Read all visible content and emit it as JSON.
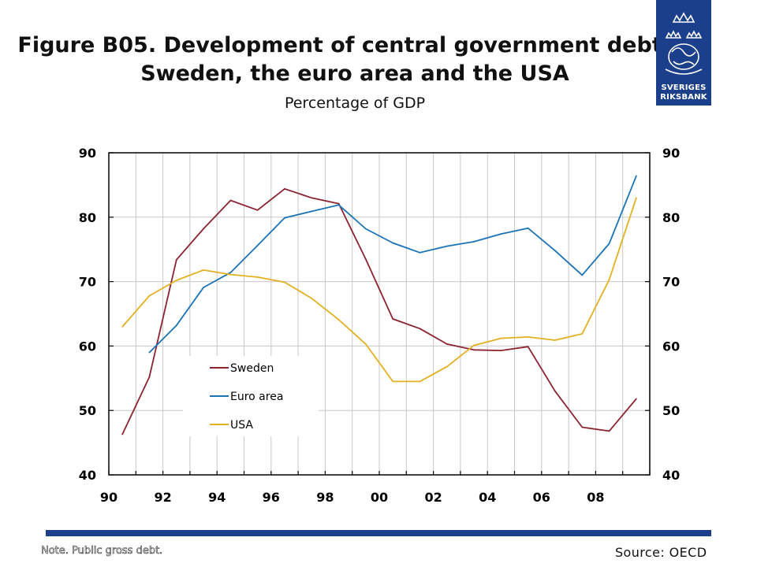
{
  "header": {
    "title_line1": "Figure B05. Development of central government debt in",
    "title_line2": "Sweden, the euro area and the USA",
    "subtitle": "Percentage of GDP"
  },
  "logo": {
    "line1": "SVERIGES",
    "line2": "RIKSBANK",
    "color": "#1b3f8b"
  },
  "chart_data": {
    "type": "line",
    "title": "Figure B05. Development of central government debt in Sweden, the euro area and the USA",
    "subtitle": "Percentage of GDP",
    "x_tick_labels": [
      "90",
      "92",
      "94",
      "96",
      "98",
      "00",
      "02",
      "04",
      "06",
      "08"
    ],
    "y_ticks": [
      40,
      50,
      60,
      70,
      80,
      90
    ],
    "xlim": [
      1990,
      2010
    ],
    "ylim": [
      40,
      90
    ],
    "grid": true,
    "legend_position": "lower-left inside",
    "series": [
      {
        "name": "Sweden",
        "color": "#8b2332",
        "x": [
          1990.5,
          1991.5,
          1992.5,
          1993.5,
          1994.5,
          1995.5,
          1996.5,
          1997.5,
          1998.5,
          1999.5,
          2000.5,
          2001.5,
          2002.5,
          2003.5,
          2004.5,
          2005.5,
          2006.5,
          2007.5,
          2008.5,
          2009.5
        ],
        "values": [
          46.3,
          55.2,
          73.4,
          78.2,
          82.6,
          81.1,
          84.4,
          83.0,
          82.1,
          73.5,
          64.2,
          62.7,
          60.3,
          59.4,
          59.3,
          59.9,
          53.0,
          47.4,
          46.8,
          51.8
        ]
      },
      {
        "name": "Euro area",
        "color": "#1a73b5",
        "x": [
          1991.5,
          1992.5,
          1993.5,
          1994.5,
          1995.5,
          1996.5,
          1997.5,
          1998.5,
          1999.5,
          2000.5,
          2001.5,
          2002.5,
          2003.5,
          2004.5,
          2005.5,
          2006.5,
          2007.5,
          2008.5,
          2009.5
        ],
        "values": [
          59.0,
          63.2,
          69.1,
          71.4,
          75.6,
          79.9,
          80.9,
          81.9,
          78.2,
          76.0,
          74.5,
          75.5,
          76.2,
          77.4,
          78.3,
          74.8,
          71.0,
          75.9,
          86.4
        ]
      },
      {
        "name": "USA",
        "color": "#e3b022",
        "x": [
          1990.5,
          1991.5,
          1992.5,
          1993.5,
          1994.5,
          1995.5,
          1996.5,
          1997.5,
          1998.5,
          1999.5,
          2000.5,
          2001.5,
          2002.5,
          2003.5,
          2004.5,
          2005.5,
          2006.5,
          2007.5,
          2008.5,
          2009.5
        ],
        "values": [
          63.0,
          67.8,
          70.2,
          71.8,
          71.1,
          70.7,
          69.9,
          67.4,
          64.1,
          60.3,
          54.5,
          54.5,
          56.8,
          60.1,
          61.2,
          61.4,
          60.9,
          61.9,
          70.3,
          83.0
        ]
      }
    ]
  },
  "footer": {
    "note": "Note. Public gross debt.",
    "source": "Source: OECD"
  }
}
